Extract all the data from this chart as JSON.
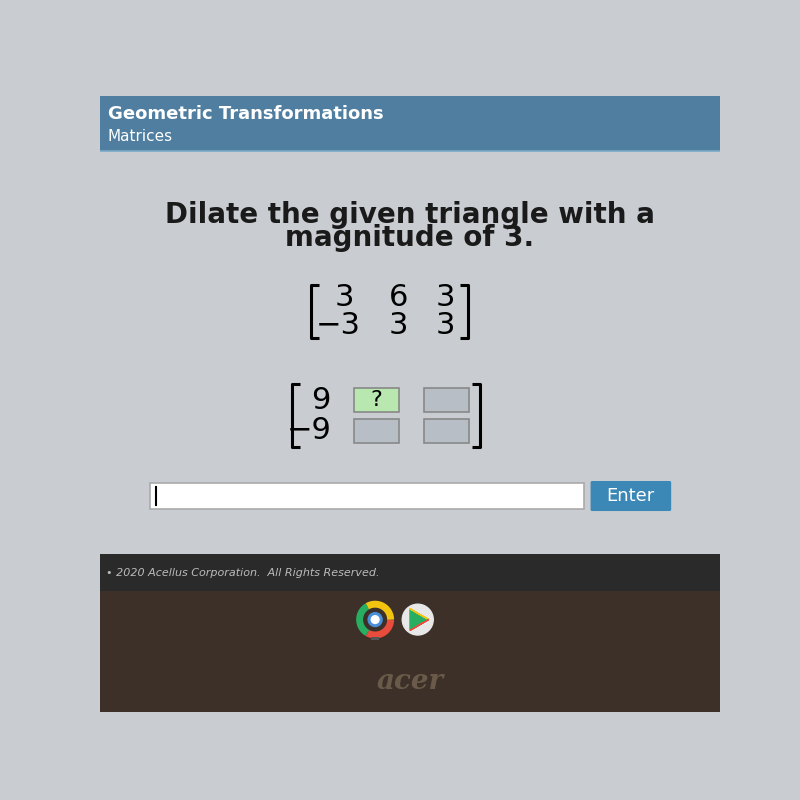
{
  "title_bar_color": "#4f7ea0",
  "title_text": "Geometric Transformations",
  "subtitle_text": "Matrices",
  "bg_color": "#c9cdd1",
  "main_question_line1": "Dilate the given triangle with a",
  "main_question_line2": "magnitude of 3.",
  "matrix1_row1": [
    "3",
    "6",
    "3"
  ],
  "matrix1_row2": [
    "−3",
    "3",
    "3"
  ],
  "matrix2_col1_row1": "9",
  "matrix2_col1_row2": "−9",
  "enter_button_color": "#3b87b5",
  "enter_button_text": "Enter",
  "footer_text": "• 2020 Acellus Corporation.  All Rights Reserved.",
  "footer_bg": "#2a2a2a",
  "bottom_bar_bg": "#3c3028",
  "question_fontsize": 20,
  "matrix_fontsize": 22
}
